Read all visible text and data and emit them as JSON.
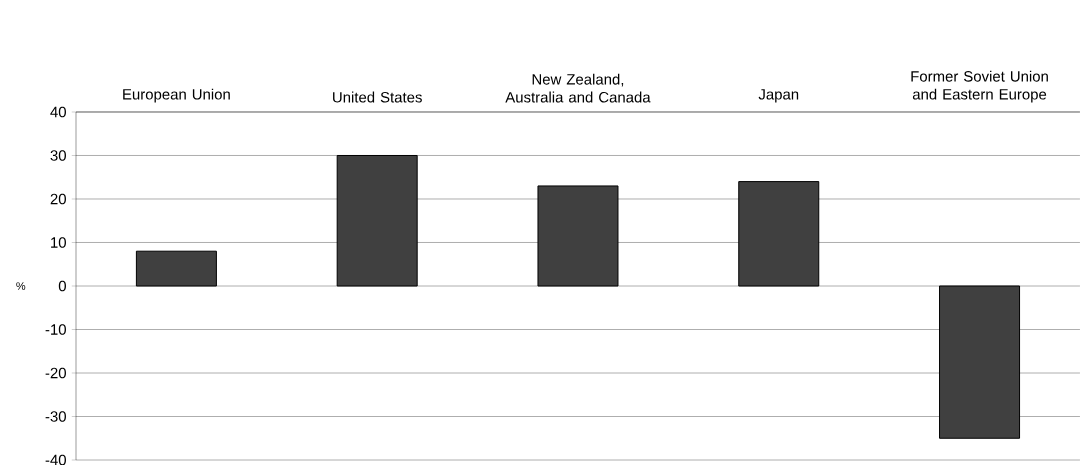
{
  "chart_data": {
    "type": "bar",
    "ylabel": "%",
    "categories": [
      "European Union",
      "United States",
      "New Zealand, Australia and Canada",
      "Japan",
      "Former Soviet Union and Eastern Europe"
    ],
    "values": [
      8,
      30,
      23,
      24,
      -35
    ],
    "color": "#404040",
    "ylim": [
      -40,
      40
    ],
    "yticks": [
      -40,
      -30,
      -20,
      -10,
      0,
      10,
      20,
      30,
      40
    ],
    "grid": "y"
  }
}
